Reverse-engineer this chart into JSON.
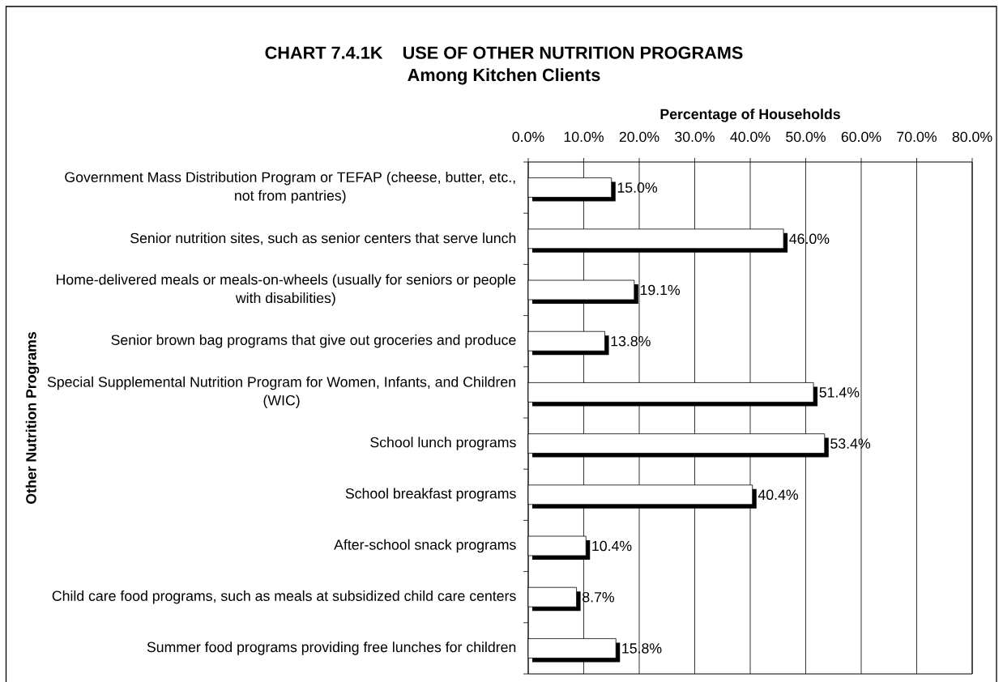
{
  "chart_data": {
    "type": "bar",
    "orientation": "horizontal",
    "title": "CHART 7.4.1K    USE OF OTHER NUTRITION PROGRAMS",
    "subtitle": "Among Kitchen Clients",
    "xlabel": "Percentage of Households",
    "ylabel": "Other Nutrition Programs",
    "categories": [
      "Government Mass Distribution Program or TEFAP (cheese, butter, etc., not from pantries)",
      "Senior nutrition sites, such as senior centers that serve lunch",
      "Home-delivered meals or meals-on-wheels (usually for seniors or people with disabilities)",
      "Senior brown bag programs that give out groceries and produce",
      "Special Supplemental Nutrition Program for Women, Infants, and Children (WIC)",
      "School lunch programs",
      "School breakfast programs",
      "After-school snack programs",
      "Child care food programs, such as meals at subsidized child care centers",
      "Summer food programs providing free lunches for children"
    ],
    "values": [
      15.0,
      46.0,
      19.1,
      13.8,
      51.4,
      53.4,
      40.4,
      10.4,
      8.7,
      15.8
    ],
    "value_labels": [
      "15.0%",
      "46.0%",
      "19.1%",
      "13.8%",
      "51.4%",
      "53.4%",
      "40.4%",
      "10.4%",
      "8.7%",
      "15.8%"
    ],
    "color": "#ffffff",
    "xlim": [
      0,
      80
    ],
    "xticks": [
      {
        "value": 0,
        "label": "0.0%"
      },
      {
        "value": 10,
        "label": "10.0%"
      },
      {
        "value": 20,
        "label": "20.0%"
      },
      {
        "value": 30,
        "label": "30.0%"
      },
      {
        "value": 40,
        "label": "40.0%"
      },
      {
        "value": 50,
        "label": "50.0%"
      },
      {
        "value": 60,
        "label": "60.0%"
      },
      {
        "value": 70,
        "label": "70.0%"
      },
      {
        "value": 80,
        "label": "80.0%"
      }
    ],
    "grid": "x"
  }
}
